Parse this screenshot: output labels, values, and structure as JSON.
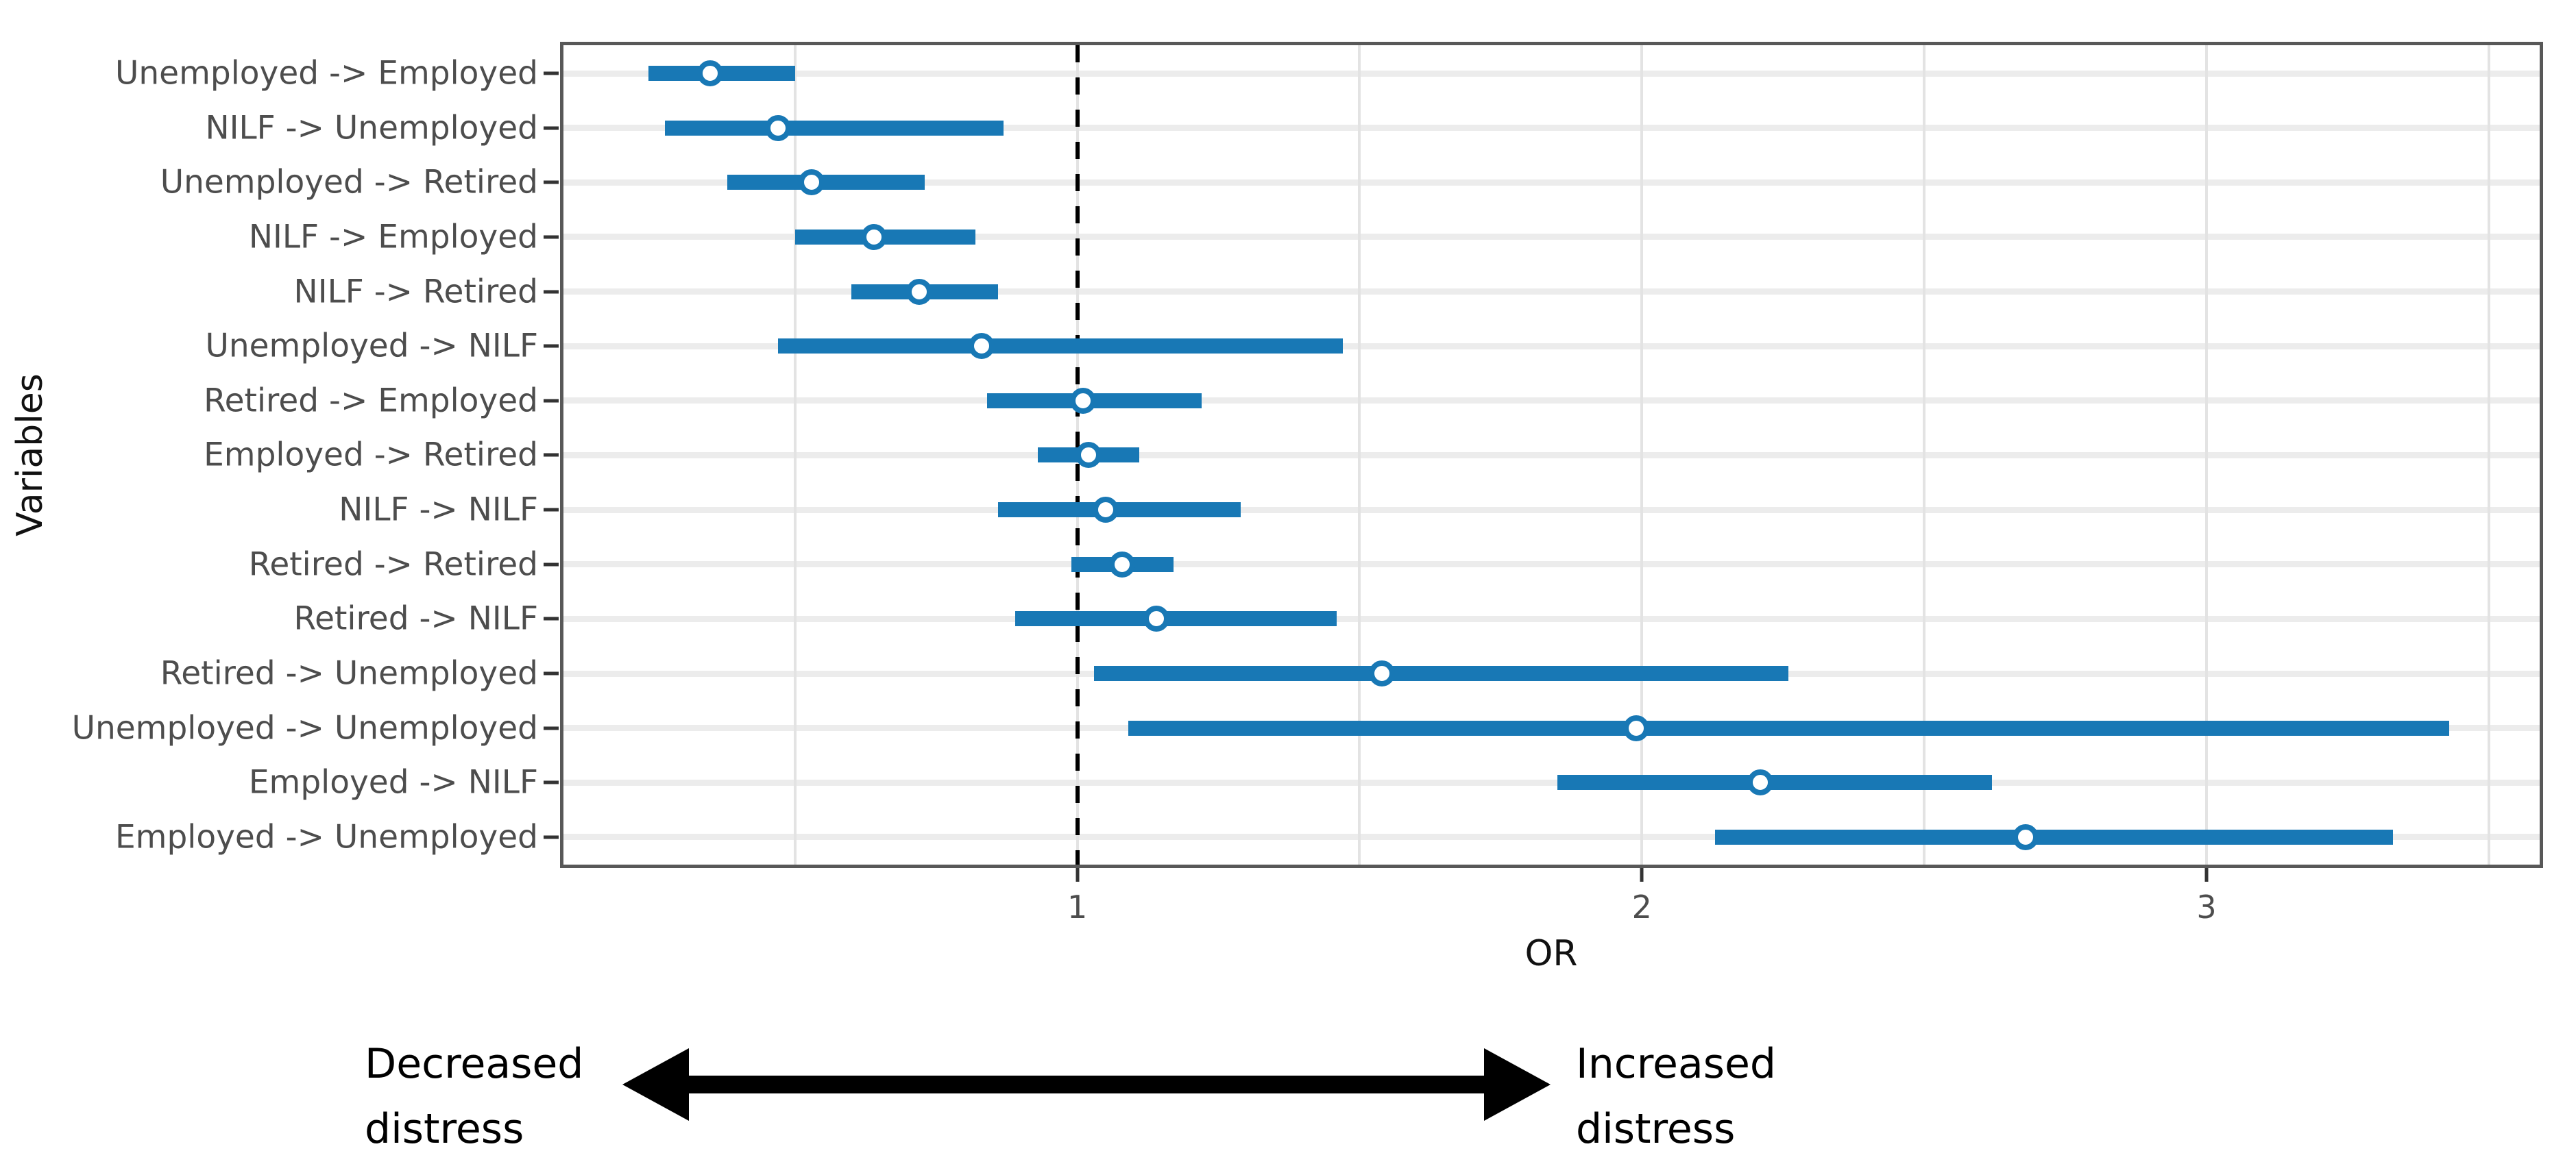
{
  "figure": {
    "y_axis_title": "Variables",
    "x_axis_title": "OR",
    "annotation_left": {
      "line1": "Decreased",
      "line2": "distress"
    },
    "annotation_right": {
      "line1": "Increased",
      "line2": "distress"
    }
  },
  "colors": {
    "bar": "#1878b5",
    "point_fill": "#ffffff",
    "panel_border": "#585858",
    "gridline": "#e3e3e3",
    "row_gridline": "#ececec",
    "reference_line": "#000000",
    "tick_mark": "#333333",
    "tick_label": "#4d4d4d",
    "axis_title": "#111111",
    "annotation_text": "#000000",
    "arrow": "#000000"
  },
  "chart_data": {
    "type": "scatter",
    "subtype": "forest-plot (odds ratios with confidence intervals)",
    "title": "",
    "xlabel": "OR",
    "ylabel": "Variables",
    "xlim": [
      0.09,
      3.59
    ],
    "x_major_ticks": [
      1,
      2,
      3
    ],
    "x_gridlines": [
      0.5,
      1,
      1.5,
      2,
      2.5,
      3,
      3.5
    ],
    "reference_line_x": 1,
    "grid": true,
    "legend": false,
    "rows": [
      {
        "label": "Unemployed -> Employed",
        "or": 0.35,
        "ci_low": 0.24,
        "ci_high": 0.5
      },
      {
        "label": "NILF -> Unemployed",
        "or": 0.47,
        "ci_low": 0.27,
        "ci_high": 0.87
      },
      {
        "label": "Unemployed -> Retired",
        "or": 0.53,
        "ci_low": 0.38,
        "ci_high": 0.73
      },
      {
        "label": "NILF -> Employed",
        "or": 0.64,
        "ci_low": 0.5,
        "ci_high": 0.82
      },
      {
        "label": "NILF -> Retired",
        "or": 0.72,
        "ci_low": 0.6,
        "ci_high": 0.86
      },
      {
        "label": "Unemployed -> NILF",
        "or": 0.83,
        "ci_low": 0.47,
        "ci_high": 1.47
      },
      {
        "label": "Retired -> Employed",
        "or": 1.01,
        "ci_low": 0.84,
        "ci_high": 1.22
      },
      {
        "label": "Employed -> Retired",
        "or": 1.02,
        "ci_low": 0.93,
        "ci_high": 1.11
      },
      {
        "label": "NILF -> NILF",
        "or": 1.05,
        "ci_low": 0.86,
        "ci_high": 1.29
      },
      {
        "label": "Retired -> Retired",
        "or": 1.08,
        "ci_low": 0.99,
        "ci_high": 1.17
      },
      {
        "label": "Retired -> NILF",
        "or": 1.14,
        "ci_low": 0.89,
        "ci_high": 1.46
      },
      {
        "label": "Retired -> Unemployed",
        "or": 1.54,
        "ci_low": 1.03,
        "ci_high": 2.26
      },
      {
        "label": "Unemployed -> Unemployed",
        "or": 1.99,
        "ci_low": 1.09,
        "ci_high": 3.43
      },
      {
        "label": "Employed -> NILF",
        "or": 2.21,
        "ci_low": 1.85,
        "ci_high": 2.62
      },
      {
        "label": "Employed -> Unemployed",
        "or": 2.68,
        "ci_low": 2.13,
        "ci_high": 3.33
      }
    ]
  }
}
